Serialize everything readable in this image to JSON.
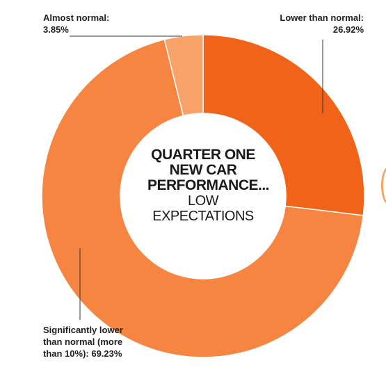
{
  "chart_data": {
    "type": "pie",
    "style": "donut",
    "title": [
      "QUARTER ONE",
      "NEW CAR",
      "PERFORMANCE..."
    ],
    "subtitle": "LOW EXPECTATIONS",
    "slices": [
      {
        "label": "Lower than normal:",
        "value_text": "26.92%",
        "value": 26.92,
        "color": "#f06318"
      },
      {
        "label": "Significantly lower than normal (more than 10%):",
        "value_text": "69.23%",
        "value": 69.23,
        "color": "#f58540"
      },
      {
        "label": "Almost normal:",
        "value_text": "3.85%",
        "value": 3.85,
        "color": "#f9a36b"
      }
    ]
  },
  "labels": {
    "lower": {
      "line1": "Lower than normal:",
      "line2": "26.92%"
    },
    "almost": {
      "line1": "Almost normal:",
      "line2": "3.85%"
    },
    "significant": {
      "line1": "Significantly lower",
      "line2": "than normal (more",
      "line3": "than 10%): 69.23%"
    }
  }
}
